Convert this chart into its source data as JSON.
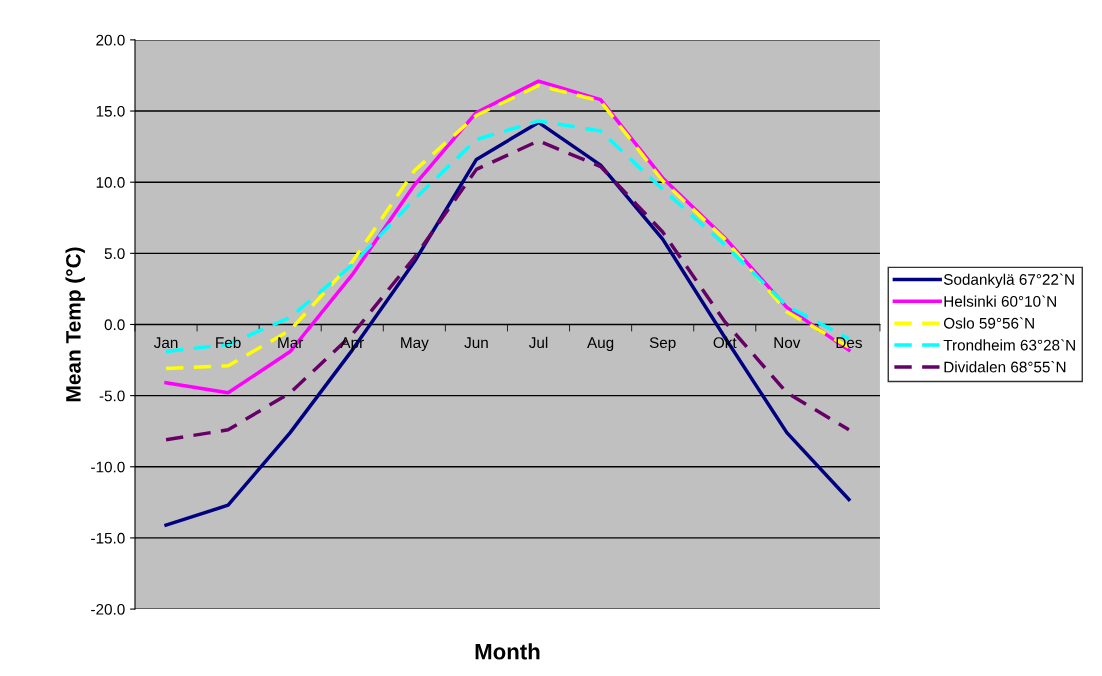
{
  "chart_data": {
    "type": "line",
    "xlabel": "Month",
    "ylabel": "Mean Temp (°C)",
    "categories": [
      "Jan",
      "Feb",
      "Mar",
      "Apr",
      "May",
      "Jun",
      "Jul",
      "Aug",
      "Sep",
      "Okt",
      "Nov",
      "Des"
    ],
    "ylim": [
      -20,
      20
    ],
    "yticks": [
      {
        "value": -20,
        "label": "-20.0"
      },
      {
        "value": -15,
        "label": "-15.0"
      },
      {
        "value": -10,
        "label": "-10.0"
      },
      {
        "value": -5,
        "label": "-5.0"
      },
      {
        "value": 0,
        "label": "0.0"
      },
      {
        "value": 5,
        "label": "5.0"
      },
      {
        "value": 10,
        "label": "10.0"
      },
      {
        "value": 15,
        "label": "15.0"
      },
      {
        "value": 20,
        "label": "20.0"
      }
    ],
    "grid": "y",
    "legend": "right",
    "marker": "none",
    "series": [
      {
        "name": "Sodankylä 67°22`N",
        "color": "#000080",
        "line_style": "solid",
        "values": [
          -14.1,
          -12.7,
          -7.6,
          -1.8,
          4.4,
          11.6,
          14.2,
          11.2,
          6.0,
          -0.9,
          -7.6,
          -12.3
        ]
      },
      {
        "name": "Helsinki 60°10`N",
        "color": "#ff00ff",
        "line_style": "solid",
        "values": [
          -4.1,
          -4.8,
          -1.9,
          3.5,
          9.8,
          14.9,
          17.1,
          15.8,
          10.3,
          6.1,
          1.2,
          -1.8
        ]
      },
      {
        "name": "Oslo 59°56`N",
        "color": "#ffff00",
        "line_style": "dashed",
        "values": [
          -3.1,
          -2.9,
          -0.4,
          4.4,
          10.8,
          14.7,
          16.8,
          15.7,
          10.1,
          6.0,
          0.9,
          -1.6
        ]
      },
      {
        "name": "Trondheim 63°28`N",
        "color": "#00ffff",
        "line_style": "dashed",
        "values": [
          -1.9,
          -1.4,
          0.5,
          4.2,
          8.8,
          13.0,
          14.3,
          13.6,
          9.5,
          5.6,
          1.3,
          -1.0
        ]
      },
      {
        "name": "Dividalen 68°55`N",
        "color": "#660066",
        "line_style": "dashed",
        "values": [
          -8.1,
          -7.4,
          -4.8,
          -0.7,
          4.7,
          10.9,
          12.9,
          11.1,
          6.5,
          0.2,
          -4.8,
          -7.4
        ]
      }
    ]
  }
}
